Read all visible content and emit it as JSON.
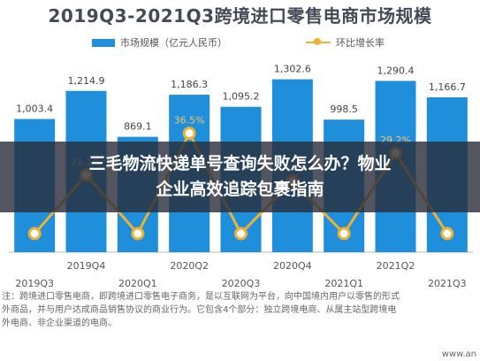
{
  "chart_data": {
    "type": "bar",
    "title": "2019Q3-2021Q3跨境进口零售电商市场规模",
    "categories": [
      "2019Q3",
      "2019Q4",
      "2020Q1",
      "2020Q2",
      "2020Q3",
      "2020Q4",
      "2021Q1",
      "2021Q2",
      "2021Q3"
    ],
    "series": [
      {
        "name": "市场规模（亿元人民币）",
        "kind": "bar",
        "color": "#1f8fdc",
        "values": [
          1003.4,
          1214.9,
          869.1,
          1186.3,
          1095.2,
          1302.6,
          998.5,
          1290.4,
          1166.7
        ],
        "labels": [
          "1,003.4",
          "1,214.9",
          "869.1",
          "1,186.3",
          "1,095.2",
          "1,302.6",
          "998.5",
          "1,290.4",
          "1,166.7"
        ]
      },
      {
        "name": "环比增长率",
        "kind": "line",
        "color": "#f0b032",
        "values": [
          null,
          21.1,
          null,
          36.5,
          null,
          18.9,
          null,
          29.2,
          null
        ],
        "labels": [
          "",
          "21.1%",
          "",
          "36.5%",
          "",
          "18.9%",
          "",
          "29.2%",
          ""
        ]
      }
    ],
    "ylim": [
      0,
      1500
    ],
    "legend": "top-center"
  },
  "overlay": {
    "text": "三毛物流快递单号查询失败怎么办？物业企业高效追踪包裹指南"
  },
  "footnote": {
    "lines": [
      "注：跨境进口零售电商，即跨境进口零售电子商务，是以互联网为平台，向中国境内用户以零售的形式",
      "外商品，并与用户达成商品销售协议的商业行为。它包含4个部分：独立跨境电商、从属主站型跨境电",
      "外电商、非企业渠道的电商。"
    ]
  },
  "watermark": "www.an"
}
